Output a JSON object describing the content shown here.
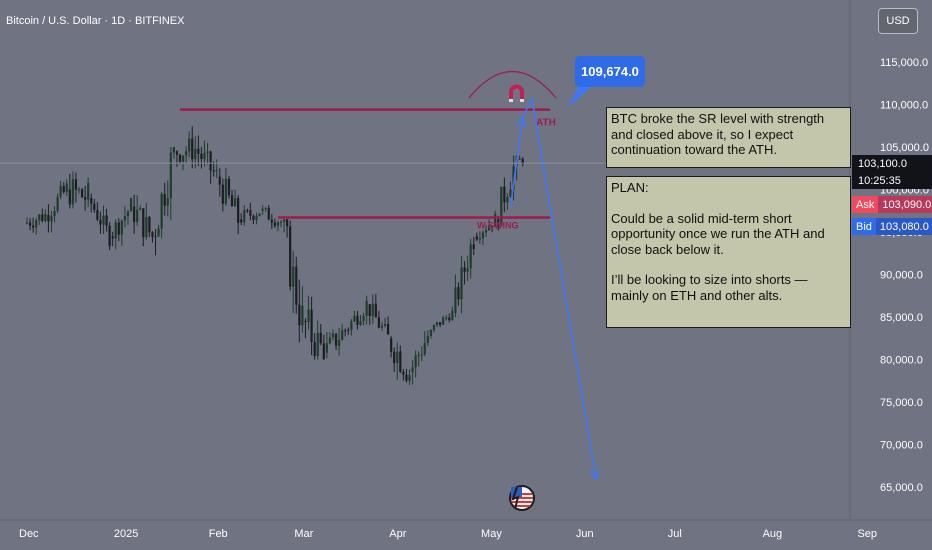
{
  "header": {
    "symbol_title": "Bitcoin / U.S. Dollar · 1D · BITFINEX",
    "currency_button": "USD"
  },
  "colors": {
    "background": "#6f7382",
    "up_candle": "#1f3d2b",
    "down_candle": "#1c1d21",
    "level_line": "#9b1c4d",
    "arrow": "#3b78ff",
    "ask": "#f14a5e",
    "bid": "#2f6bf0",
    "note_bg": "#c3c6aa"
  },
  "annotations": {
    "callout_price": "109,674.0",
    "ath_label": "ATH",
    "swing_label": "W SWING",
    "note1": "BTC broke the SR level with strength and closed above it, so I expect continuation toward the ATH.",
    "plan_title": "PLAN:",
    "plan_body1": "Could be a solid mid-term short opportunity once we run the ATH and close back below it.",
    "plan_body2": "I’ll be looking to size into shorts — mainly on ETH and other alts."
  },
  "price_scale": {
    "last_price": "103,100.0",
    "countdown": "10:25:35",
    "ask_label": "Ask",
    "ask_value": "103,090.0",
    "bid_label": "Bid",
    "bid_value": "103,080.0"
  },
  "chart_data": {
    "type": "candlestick",
    "title": "Bitcoin / U.S. Dollar · 1D · BITFINEX",
    "y_ticks": [
      "115,000.0",
      "110,000.0",
      "105,000.0",
      "100,000.0",
      "95,000.0",
      "90,000.0",
      "85,000.0",
      "80,000.0",
      "75,000.0",
      "70,000.0",
      "65,000.0"
    ],
    "y_tick_values": [
      115000,
      110000,
      105000,
      100000,
      95000,
      90000,
      85000,
      80000,
      75000,
      70000,
      65000
    ],
    "x_ticks": [
      "Dec",
      "2025",
      "Feb",
      "Mar",
      "Apr",
      "May",
      "Jun",
      "Jul",
      "Aug",
      "Sep"
    ],
    "ylim": [
      61500,
      119500
    ],
    "levels": [
      {
        "label": "ATH",
        "price": 109400,
        "from": "2025-01-20",
        "to": "2025-05-19"
      },
      {
        "label": "W SWING",
        "price": 96700,
        "from": "2025-02-21",
        "to": "2025-05-19"
      }
    ],
    "last_price": 103100,
    "path_key_points": [
      {
        "date": "2025-05-08",
        "price": 98000
      },
      {
        "date": "2025-05-12",
        "price": 108500
      },
      {
        "date": "2025-05-15",
        "price": 110700
      },
      {
        "date": "2025-06-05",
        "price": 65900
      }
    ],
    "candles_weekly_approx": [
      {
        "date": "2024-12-01",
        "open": 96000,
        "high": 99500,
        "low": 93500,
        "close": 97000
      },
      {
        "date": "2024-12-08",
        "open": 97000,
        "high": 101500,
        "low": 94000,
        "close": 100000
      },
      {
        "date": "2024-12-15",
        "open": 100000,
        "high": 108000,
        "low": 97000,
        "close": 99000
      },
      {
        "date": "2024-12-22",
        "open": 99000,
        "high": 99500,
        "low": 92500,
        "close": 94500
      },
      {
        "date": "2024-12-29",
        "open": 94500,
        "high": 99000,
        "low": 91500,
        "close": 98000
      },
      {
        "date": "2025-01-05",
        "open": 98000,
        "high": 102500,
        "low": 91500,
        "close": 94500
      },
      {
        "date": "2025-01-12",
        "open": 94500,
        "high": 105000,
        "low": 89500,
        "close": 104500
      },
      {
        "date": "2025-01-19",
        "open": 104500,
        "high": 109500,
        "low": 100500,
        "close": 104800
      },
      {
        "date": "2025-01-26",
        "open": 104800,
        "high": 106500,
        "low": 97500,
        "close": 101500
      },
      {
        "date": "2025-02-02",
        "open": 101500,
        "high": 102500,
        "low": 91500,
        "close": 96500
      },
      {
        "date": "2025-02-09",
        "open": 96500,
        "high": 99500,
        "low": 94000,
        "close": 97500
      },
      {
        "date": "2025-02-16",
        "open": 97500,
        "high": 99500,
        "low": 94500,
        "close": 96200
      },
      {
        "date": "2025-02-23",
        "open": 96200,
        "high": 96500,
        "low": 78500,
        "close": 84500
      },
      {
        "date": "2025-03-02",
        "open": 84500,
        "high": 95000,
        "low": 80000,
        "close": 80800
      },
      {
        "date": "2025-03-09",
        "open": 80800,
        "high": 84500,
        "low": 76500,
        "close": 83500
      },
      {
        "date": "2025-03-16",
        "open": 83500,
        "high": 87500,
        "low": 81000,
        "close": 86500
      },
      {
        "date": "2025-03-23",
        "open": 86500,
        "high": 88500,
        "low": 81500,
        "close": 82500
      },
      {
        "date": "2025-03-30",
        "open": 82500,
        "high": 88500,
        "low": 77000,
        "close": 78500
      },
      {
        "date": "2025-04-06",
        "open": 78500,
        "high": 83500,
        "low": 74500,
        "close": 83500
      },
      {
        "date": "2025-04-13",
        "open": 83500,
        "high": 86500,
        "low": 83000,
        "close": 85500
      },
      {
        "date": "2025-04-20",
        "open": 85500,
        "high": 95500,
        "low": 85000,
        "close": 94500
      },
      {
        "date": "2025-04-27",
        "open": 94500,
        "high": 97500,
        "low": 92800,
        "close": 96500
      },
      {
        "date": "2025-05-04",
        "open": 96500,
        "high": 104000,
        "low": 93500,
        "close": 103500
      },
      {
        "date": "2025-05-11",
        "open": 103500,
        "high": 105000,
        "low": 102000,
        "close": 103100
      }
    ]
  }
}
